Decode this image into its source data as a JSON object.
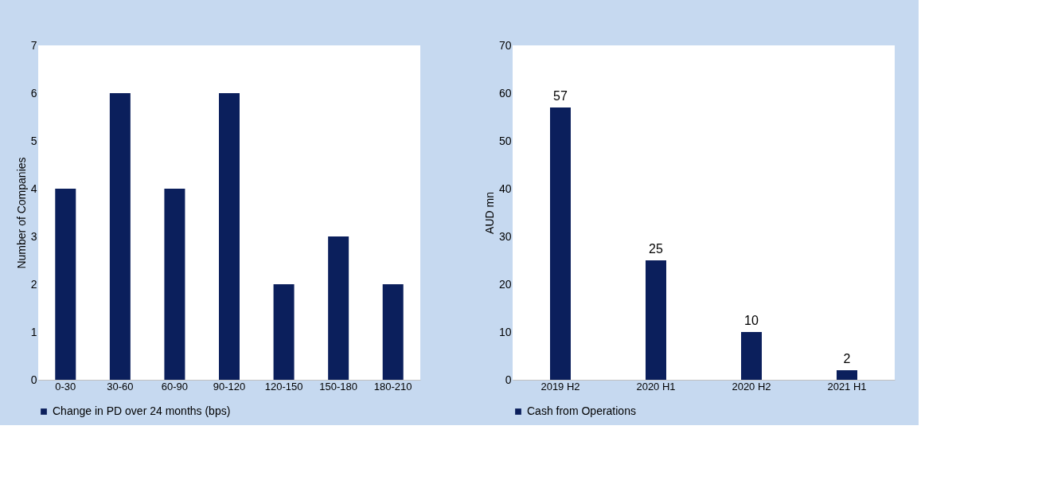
{
  "chart_data": [
    {
      "type": "bar",
      "ylabel": "Number of Companies",
      "categories": [
        "0-30",
        "30-60",
        "60-90",
        "90-120",
        "120-150",
        "150-180",
        "180-210"
      ],
      "series": [
        {
          "name": "Change in PD over 24 months (bps)",
          "color": "#0b1f5c",
          "values": [
            4,
            6,
            4,
            6,
            2,
            3,
            2
          ]
        }
      ],
      "ylim": [
        0,
        7
      ],
      "yticks": [
        0,
        1,
        2,
        3,
        4,
        5,
        6,
        7
      ],
      "grid": false,
      "legend": "bottom"
    },
    {
      "type": "bar",
      "ylabel": "AUD mn",
      "categories": [
        "2019 H2",
        "2020 H1",
        "2020 H2",
        "2021 H1"
      ],
      "series": [
        {
          "name": "Cash from Operations",
          "color": "#0b1f5c",
          "values": [
            57,
            25,
            10,
            2
          ]
        }
      ],
      "ylim": [
        0,
        70
      ],
      "yticks": [
        0,
        10,
        20,
        30,
        40,
        50,
        60,
        70
      ],
      "grid": false,
      "legend": "bottom",
      "data_labels": true
    }
  ]
}
